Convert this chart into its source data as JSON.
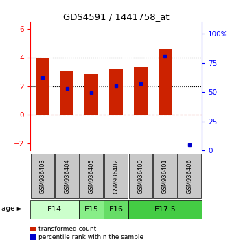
{
  "title": "GDS4591 / 1441758_at",
  "samples": [
    "GSM936403",
    "GSM936404",
    "GSM936405",
    "GSM936402",
    "GSM936400",
    "GSM936401",
    "GSM936406"
  ],
  "transformed_counts": [
    3.95,
    3.1,
    2.85,
    3.2,
    3.35,
    4.6,
    -0.05
  ],
  "percentile_ranks": [
    2.6,
    1.85,
    1.55,
    2.05,
    2.2,
    4.1,
    -2.1
  ],
  "age_groups": [
    {
      "label": "E14",
      "start": 0,
      "end": 2,
      "color": "#ccffcc"
    },
    {
      "label": "E15",
      "start": 2,
      "end": 3,
      "color": "#88ee88"
    },
    {
      "label": "E16",
      "start": 3,
      "end": 4,
      "color": "#66dd66"
    },
    {
      "label": "E17.5",
      "start": 4,
      "end": 7,
      "color": "#44cc44"
    }
  ],
  "bar_color": "#cc2200",
  "dot_color": "#0000cc",
  "ylim_left": [
    -2.5,
    6.5
  ],
  "ylim_right": [
    0,
    110
  ],
  "yticks_left": [
    -2,
    0,
    2,
    4,
    6
  ],
  "yticks_right": [
    0,
    25,
    50,
    75,
    100
  ],
  "ytick_labels_right": [
    "0",
    "25",
    "50",
    "75",
    "100%"
  ],
  "grid_lines": [
    4.0,
    2.0
  ],
  "hline_y": 0.0,
  "background_color": "#ffffff",
  "bar_width": 0.55,
  "sample_box_color": "#c8c8c8",
  "legend_items": [
    {
      "color": "#cc2200",
      "label": "transformed count"
    },
    {
      "color": "#0000cc",
      "label": "percentile rank within the sample"
    }
  ]
}
